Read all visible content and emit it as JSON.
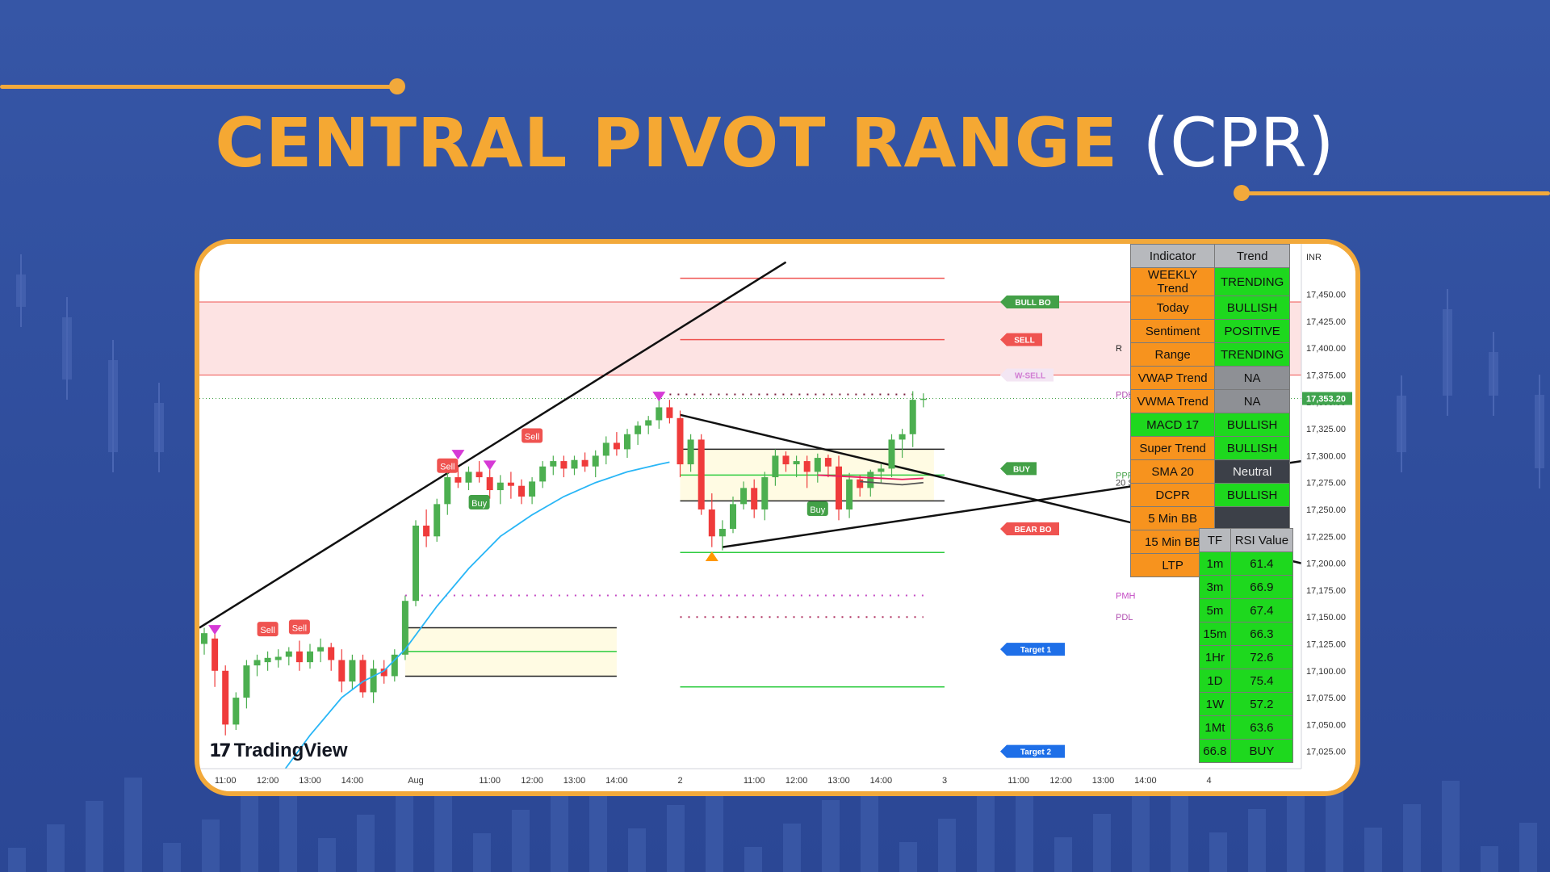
{
  "page": {
    "title_highlight": "CENTRAL PIVOT RANGE",
    "title_suffix": "(CPR)",
    "brand": "TradingView",
    "brand_mark": "17",
    "colors": {
      "accent": "#f2a93b",
      "background": "#3656a6",
      "bull": "#26a69a",
      "bear": "#ef5350"
    }
  },
  "chart_data": {
    "type": "candlestick",
    "currency": "INR",
    "last_price": "17,353.20",
    "ylim": [
      17015,
      17470
    ],
    "y_ticks": [
      17025,
      17050,
      17075,
      17100,
      17125,
      17150,
      17175,
      17200,
      17225,
      17250,
      17275,
      17300,
      17325,
      17350,
      17375,
      17400,
      17425,
      17450
    ],
    "y_tick_labels": [
      "17,025.00",
      "17,050.00",
      "17,075.00",
      "17,100.00",
      "17,125.00",
      "17,150.00",
      "17,175.00",
      "17,200.00",
      "17,225.00",
      "17,250.00",
      "17,275.00",
      "17,300.00",
      "17,325.00",
      "17,350.00",
      "17,375.00",
      "17,400.00",
      "17,425.00",
      "17,450.00"
    ],
    "x_ticks": [
      {
        "label": "11:00",
        "slot": 2
      },
      {
        "label": "12:00",
        "slot": 6
      },
      {
        "label": "13:00",
        "slot": 10
      },
      {
        "label": "14:00",
        "slot": 14
      },
      {
        "label": "Aug",
        "slot": 20
      },
      {
        "label": "11:00",
        "slot": 27
      },
      {
        "label": "12:00",
        "slot": 31
      },
      {
        "label": "13:00",
        "slot": 35
      },
      {
        "label": "14:00",
        "slot": 39
      },
      {
        "label": "2",
        "slot": 45
      },
      {
        "label": "11:00",
        "slot": 52
      },
      {
        "label": "12:00",
        "slot": 56
      },
      {
        "label": "13:00",
        "slot": 60
      },
      {
        "label": "14:00",
        "slot": 64
      },
      {
        "label": "3",
        "slot": 70
      },
      {
        "label": "11:00",
        "slot": 77
      },
      {
        "label": "12:00",
        "slot": 81
      },
      {
        "label": "13:00",
        "slot": 85
      },
      {
        "label": "14:00",
        "slot": 89
      },
      {
        "label": "4",
        "slot": 95
      }
    ],
    "candles": [
      [
        17125,
        17140,
        17115,
        17135
      ],
      [
        17130,
        17135,
        17085,
        17100
      ],
      [
        17100,
        17105,
        17040,
        17050
      ],
      [
        17050,
        17080,
        17045,
        17075
      ],
      [
        17075,
        17110,
        17065,
        17105
      ],
      [
        17105,
        17115,
        17095,
        17110
      ],
      [
        17108,
        17118,
        17100,
        17112
      ],
      [
        17110,
        17120,
        17103,
        17113
      ],
      [
        17113,
        17122,
        17105,
        17118
      ],
      [
        17118,
        17128,
        17100,
        17108
      ],
      [
        17108,
        17125,
        17102,
        17118
      ],
      [
        17118,
        17130,
        17108,
        17122
      ],
      [
        17122,
        17126,
        17100,
        17110
      ],
      [
        17110,
        17120,
        17080,
        17090
      ],
      [
        17090,
        17115,
        17082,
        17110
      ],
      [
        17110,
        17115,
        17075,
        17080
      ],
      [
        17080,
        17110,
        17070,
        17102
      ],
      [
        17102,
        17110,
        17088,
        17095
      ],
      [
        17095,
        17120,
        17090,
        17115
      ],
      [
        17115,
        17170,
        17110,
        17165
      ],
      [
        17165,
        17240,
        17160,
        17235
      ],
      [
        17235,
        17250,
        17215,
        17225
      ],
      [
        17225,
        17260,
        17220,
        17255
      ],
      [
        17255,
        17285,
        17245,
        17280
      ],
      [
        17280,
        17290,
        17270,
        17275
      ],
      [
        17275,
        17290,
        17268,
        17285
      ],
      [
        17285,
        17295,
        17275,
        17280
      ],
      [
        17280,
        17292,
        17260,
        17268
      ],
      [
        17268,
        17282,
        17255,
        17275
      ],
      [
        17275,
        17285,
        17260,
        17272
      ],
      [
        17272,
        17278,
        17255,
        17262
      ],
      [
        17262,
        17280,
        17255,
        17276
      ],
      [
        17276,
        17295,
        17270,
        17290
      ],
      [
        17290,
        17300,
        17282,
        17295
      ],
      [
        17295,
        17300,
        17280,
        17288
      ],
      [
        17288,
        17300,
        17282,
        17296
      ],
      [
        17296,
        17303,
        17285,
        17290
      ],
      [
        17290,
        17305,
        17280,
        17300
      ],
      [
        17300,
        17318,
        17292,
        17312
      ],
      [
        17312,
        17322,
        17300,
        17306
      ],
      [
        17306,
        17325,
        17298,
        17320
      ],
      [
        17320,
        17332,
        17310,
        17328
      ],
      [
        17328,
        17337,
        17320,
        17333
      ],
      [
        17333,
        17355,
        17325,
        17345
      ],
      [
        17345,
        17352,
        17330,
        17335
      ],
      [
        17335,
        17342,
        17280,
        17292
      ],
      [
        17292,
        17320,
        17285,
        17315
      ],
      [
        17315,
        17320,
        17245,
        17250
      ],
      [
        17250,
        17265,
        17215,
        17225
      ],
      [
        17225,
        17240,
        17212,
        17232
      ],
      [
        17232,
        17262,
        17228,
        17255
      ],
      [
        17255,
        17276,
        17250,
        17270
      ],
      [
        17270,
        17278,
        17242,
        17250
      ],
      [
        17250,
        17285,
        17240,
        17280
      ],
      [
        17280,
        17306,
        17272,
        17300
      ],
      [
        17300,
        17304,
        17285,
        17292
      ],
      [
        17292,
        17300,
        17280,
        17295
      ],
      [
        17295,
        17300,
        17270,
        17285
      ],
      [
        17285,
        17302,
        17275,
        17298
      ],
      [
        17298,
        17301,
        17280,
        17290
      ],
      [
        17290,
        17300,
        17240,
        17250
      ],
      [
        17250,
        17284,
        17242,
        17278
      ],
      [
        17278,
        17282,
        17262,
        17270
      ],
      [
        17270,
        17287,
        17262,
        17285
      ],
      [
        17285,
        17292,
        17275,
        17288
      ],
      [
        17288,
        17320,
        17280,
        17315
      ],
      [
        17315,
        17325,
        17298,
        17320
      ],
      [
        17320,
        17360,
        17308,
        17352
      ],
      [
        17352,
        17358,
        17345,
        17353
      ]
    ],
    "series": [
      {
        "name": "20 SMA",
        "color": "#29b6f6",
        "values": [
          [
            7,
            17000
          ],
          [
            10,
            17040
          ],
          [
            13,
            17075
          ],
          [
            15,
            17090
          ],
          [
            17,
            17100
          ],
          [
            19,
            17120
          ],
          [
            22,
            17160
          ],
          [
            25,
            17195
          ],
          [
            28,
            17225
          ],
          [
            31,
            17245
          ],
          [
            34,
            17262
          ],
          [
            37,
            17275
          ],
          [
            40,
            17285
          ],
          [
            43,
            17292
          ],
          [
            44,
            17294
          ]
        ]
      },
      {
        "name": "VWAP",
        "color": "#e91e63",
        "values": [
          [
            58,
            17282
          ],
          [
            62,
            17280
          ],
          [
            66,
            17278
          ],
          [
            68,
            17279
          ]
        ]
      },
      {
        "name": "SMA",
        "color": "#555555",
        "values": [
          [
            62,
            17276
          ],
          [
            66,
            17273
          ],
          [
            68,
            17275
          ]
        ]
      }
    ],
    "levels": [
      {
        "label": "BULL BO",
        "value": 17443,
        "color": "#43a047",
        "from_slot": 44,
        "to_slot": 70
      },
      {
        "label": "SELL",
        "value": 17408,
        "color": "#ef5350",
        "from_slot": 44,
        "to_slot": 70
      },
      {
        "label": "W-SELL",
        "value": 17375,
        "color": "#d17cd3",
        "from_slot": 0,
        "to_slot": 100
      },
      {
        "label": "BUY",
        "value": 17288,
        "color": "#43a047",
        "from_slot": 44,
        "to_slot": 70
      },
      {
        "label": "BEAR BO",
        "value": 17232,
        "color": "#ef5350",
        "from_slot": 44,
        "to_slot": 70
      },
      {
        "label": "Target 1",
        "value": 17120,
        "color": "#1e6fe8",
        "from_slot": 0,
        "to_slot": 0
      },
      {
        "label": "Target 2",
        "value": 17025,
        "color": "#1e6fe8",
        "from_slot": 0,
        "to_slot": 0
      }
    ],
    "side_labels": [
      {
        "label": "PDH",
        "value": 17357,
        "color": "#b04fb0"
      },
      {
        "label": "PDL",
        "value": 17150,
        "color": "#b04fb0"
      },
      {
        "label": "PMH",
        "value": 17170,
        "color": "#c44bc4"
      },
      {
        "label": "PPP",
        "value": 17282,
        "color": "#43a047"
      },
      {
        "label": "20 S",
        "value": 17275,
        "color": "#444444"
      },
      {
        "label": "R",
        "value": 17400,
        "color": "#222222"
      }
    ],
    "signals": [
      {
        "label": "Sell",
        "slot": 6,
        "price": 17138,
        "color": "#ef5350"
      },
      {
        "label": "Sell",
        "slot": 9,
        "price": 17140,
        "color": "#ef5350"
      },
      {
        "label": "Buy",
        "slot": 26,
        "price": 17256,
        "color": "#43a047"
      },
      {
        "label": "Sell",
        "slot": 23,
        "price": 17290,
        "color": "#ef5350"
      },
      {
        "label": "Sell",
        "slot": 31,
        "price": 17318,
        "color": "#ef5350"
      },
      {
        "label": "Buy",
        "slot": 58,
        "price": 17250,
        "color": "#43a047"
      }
    ]
  },
  "indicator_table": {
    "headers": [
      "Indicator",
      "Trend"
    ],
    "rows": [
      {
        "name": "WEEKLY Trend",
        "value": "TRENDING",
        "color": "#1ed81e"
      },
      {
        "name": "Today",
        "value": "BULLISH",
        "color": "#1ed81e"
      },
      {
        "name": "Sentiment",
        "value": "POSITIVE",
        "color": "#1ed81e"
      },
      {
        "name": "Range",
        "value": "TRENDING",
        "color": "#1ed81e"
      },
      {
        "name": "VWAP Trend",
        "value": "NA",
        "color": "#8e9095"
      },
      {
        "name": "VWMA Trend",
        "value": "NA",
        "color": "#8e9095"
      },
      {
        "name": "MACD 17",
        "value": "BULLISH",
        "color": "#1ed81e"
      },
      {
        "name": "Super Trend",
        "value": "BULLISH",
        "color": "#1ed81e"
      },
      {
        "name": "SMA 20",
        "value": "Neutral",
        "color": "#3c4048"
      },
      {
        "name": "DCPR",
        "value": "BULLISH",
        "color": "#1ed81e"
      },
      {
        "name": "5 Min BB",
        "value": "",
        "color": "#3c4048"
      },
      {
        "name": "15 Min BB",
        "value": "",
        "color": "#3c4048"
      },
      {
        "name": "LTP",
        "value": "",
        "color": "#ffffff"
      }
    ]
  },
  "rsi_table": {
    "headers": [
      "TF",
      "RSI Value"
    ],
    "rows": [
      {
        "tf": "1m",
        "value": "61.4"
      },
      {
        "tf": "3m",
        "value": "66.9"
      },
      {
        "tf": "5m",
        "value": "67.4"
      },
      {
        "tf": "15m",
        "value": "66.3"
      },
      {
        "tf": "1Hr",
        "value": "72.6"
      },
      {
        "tf": "1D",
        "value": "75.4"
      },
      {
        "tf": "1W",
        "value": "57.2"
      },
      {
        "tf": "1Mt",
        "value": "63.6"
      },
      {
        "tf": "66.8",
        "value": "BUY"
      }
    ]
  }
}
